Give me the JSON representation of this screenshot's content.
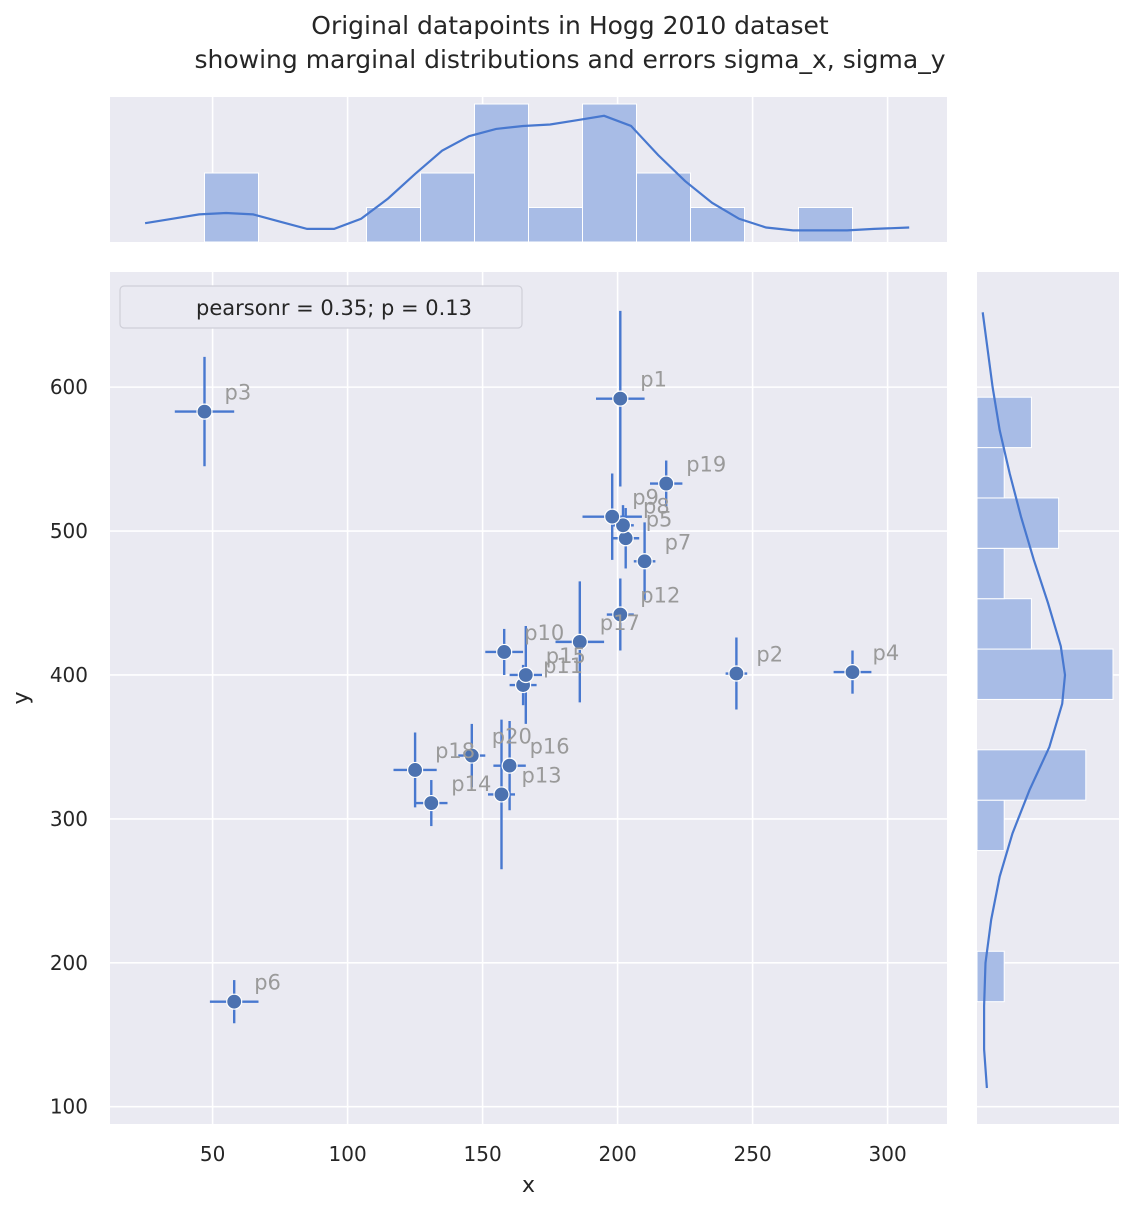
{
  "chart_data": {
    "type": "scatter",
    "title": "Original datapoints in Hogg 2010 dataset",
    "subtitle": "showing marginal distributions and errors sigma_x, sigma_y",
    "xlabel": "x",
    "ylabel": "y",
    "xlim": [
      12,
      322
    ],
    "ylim": [
      88,
      680
    ],
    "xticks": [
      50,
      100,
      150,
      200,
      250,
      300
    ],
    "yticks": [
      100,
      200,
      300,
      400,
      500,
      600
    ],
    "grid": true,
    "legend": {
      "text": "pearsonr = 0.35; p = 0.13",
      "placement": "top-left"
    },
    "points": [
      {
        "label": "p1",
        "x": 201,
        "y": 592,
        "sx": 9,
        "sy": 61
      },
      {
        "label": "p2",
        "x": 244,
        "y": 401,
        "sx": 4,
        "sy": 25
      },
      {
        "label": "p3",
        "x": 47,
        "y": 583,
        "sx": 11,
        "sy": 38
      },
      {
        "label": "p4",
        "x": 287,
        "y": 402,
        "sx": 7,
        "sy": 15
      },
      {
        "label": "p5",
        "x": 203,
        "y": 495,
        "sx": 5,
        "sy": 21
      },
      {
        "label": "p6",
        "x": 58,
        "y": 173,
        "sx": 9,
        "sy": 15
      },
      {
        "label": "p7",
        "x": 210,
        "y": 479,
        "sx": 4,
        "sy": 27
      },
      {
        "label": "p8",
        "x": 202,
        "y": 504,
        "sx": 4,
        "sy": 14
      },
      {
        "label": "p9",
        "x": 198,
        "y": 510,
        "sx": 11,
        "sy": 30
      },
      {
        "label": "p10",
        "x": 158,
        "y": 416,
        "sx": 7,
        "sy": 16
      },
      {
        "label": "p11",
        "x": 165,
        "y": 393,
        "sx": 5,
        "sy": 14
      },
      {
        "label": "p12",
        "x": 201,
        "y": 442,
        "sx": 5,
        "sy": 25
      },
      {
        "label": "p13",
        "x": 157,
        "y": 317,
        "sx": 5,
        "sy": 52
      },
      {
        "label": "p14",
        "x": 131,
        "y": 311,
        "sx": 6,
        "sy": 16
      },
      {
        "label": "p15",
        "x": 166,
        "y": 400,
        "sx": 6,
        "sy": 34
      },
      {
        "label": "p16",
        "x": 160,
        "y": 337,
        "sx": 6,
        "sy": 31
      },
      {
        "label": "p17",
        "x": 186,
        "y": 423,
        "sx": 9,
        "sy": 42
      },
      {
        "label": "p18",
        "x": 125,
        "y": 334,
        "sx": 8,
        "sy": 26
      },
      {
        "label": "p19",
        "x": 218,
        "y": 533,
        "sx": 6,
        "sy": 16
      },
      {
        "label": "p20",
        "x": 146,
        "y": 344,
        "sx": 5,
        "sy": 22
      }
    ],
    "x_marginal": {
      "bins": [
        [
          47,
          67,
          2
        ],
        [
          107,
          127,
          1
        ],
        [
          127,
          147,
          2
        ],
        [
          147,
          167,
          4
        ],
        [
          167,
          187,
          1
        ],
        [
          187,
          207,
          4
        ],
        [
          207,
          227,
          2
        ],
        [
          227,
          247,
          1
        ],
        [
          267,
          287,
          1
        ]
      ],
      "kde": [
        [
          25,
          0.13
        ],
        [
          35,
          0.16
        ],
        [
          45,
          0.19
        ],
        [
          55,
          0.2
        ],
        [
          65,
          0.19
        ],
        [
          75,
          0.14
        ],
        [
          85,
          0.09
        ],
        [
          95,
          0.09
        ],
        [
          105,
          0.16
        ],
        [
          115,
          0.3
        ],
        [
          125,
          0.47
        ],
        [
          135,
          0.63
        ],
        [
          145,
          0.73
        ],
        [
          155,
          0.78
        ],
        [
          165,
          0.8
        ],
        [
          175,
          0.81
        ],
        [
          185,
          0.84
        ],
        [
          195,
          0.87
        ],
        [
          205,
          0.8
        ],
        [
          215,
          0.6
        ],
        [
          225,
          0.42
        ],
        [
          235,
          0.27
        ],
        [
          245,
          0.16
        ],
        [
          255,
          0.1
        ],
        [
          265,
          0.08
        ],
        [
          275,
          0.08
        ],
        [
          285,
          0.08
        ],
        [
          295,
          0.09
        ],
        [
          308,
          0.1
        ]
      ]
    },
    "y_marginal": {
      "bins": [
        [
          173,
          208,
          1
        ],
        [
          278,
          313,
          1
        ],
        [
          313,
          348,
          4
        ],
        [
          383,
          418,
          5
        ],
        [
          418,
          453,
          2
        ],
        [
          453,
          488,
          1
        ],
        [
          488,
          523,
          3
        ],
        [
          523,
          558,
          1
        ],
        [
          558,
          593,
          2
        ]
      ],
      "kde": [
        [
          113,
          0.07
        ],
        [
          140,
          0.05
        ],
        [
          170,
          0.05
        ],
        [
          200,
          0.06
        ],
        [
          230,
          0.1
        ],
        [
          260,
          0.16
        ],
        [
          290,
          0.25
        ],
        [
          320,
          0.37
        ],
        [
          350,
          0.51
        ],
        [
          380,
          0.6
        ],
        [
          400,
          0.62
        ],
        [
          420,
          0.59
        ],
        [
          450,
          0.5
        ],
        [
          480,
          0.4
        ],
        [
          510,
          0.31
        ],
        [
          540,
          0.23
        ],
        [
          570,
          0.16
        ],
        [
          600,
          0.11
        ],
        [
          630,
          0.07
        ],
        [
          652,
          0.04
        ]
      ]
    },
    "colors": {
      "bg": "#eaeaf2",
      "marker": "#4c72b0",
      "line": "#4878cf",
      "bar": "#a8bce6"
    }
  }
}
